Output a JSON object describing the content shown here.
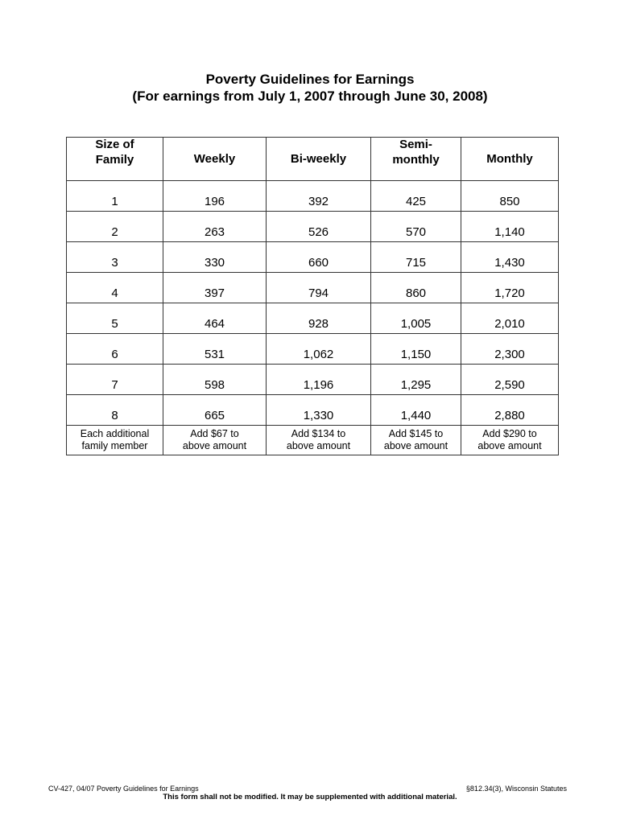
{
  "title": {
    "line1": "Poverty Guidelines for Earnings",
    "line2": "(For earnings from July 1, 2007 through June 30, 2008)"
  },
  "table": {
    "headers": [
      "Size of Family",
      "Weekly",
      "Bi-weekly",
      "Semi-monthly",
      "Monthly"
    ],
    "rows": [
      [
        "1",
        "196",
        "392",
        "425",
        "850"
      ],
      [
        "2",
        "263",
        "526",
        "570",
        "1,140"
      ],
      [
        "3",
        "330",
        "660",
        "715",
        "1,430"
      ],
      [
        "4",
        "397",
        "794",
        "860",
        "1,720"
      ],
      [
        "5",
        "464",
        "928",
        "1,005",
        "2,010"
      ],
      [
        "6",
        "531",
        "1,062",
        "1,150",
        "2,300"
      ],
      [
        "7",
        "598",
        "1,196",
        "1,295",
        "2,590"
      ],
      [
        "8",
        "665",
        "1,330",
        "1,440",
        "2,880"
      ]
    ],
    "additional": [
      {
        "l1": "Each additional",
        "l2": "family member"
      },
      {
        "l1": "Add $67 to",
        "l2": "above amount"
      },
      {
        "l1": "Add $134 to",
        "l2": "above amount"
      },
      {
        "l1": "Add $145 to",
        "l2": "above amount"
      },
      {
        "l1": "Add $290 to",
        "l2": "above amount"
      }
    ]
  },
  "footer": {
    "left": "CV-427, 04/07 Poverty Guidelines for Earnings",
    "right": "§812.34(3), Wisconsin Statutes",
    "notice": "This form shall not be modified. It may be supplemented with additional material."
  }
}
